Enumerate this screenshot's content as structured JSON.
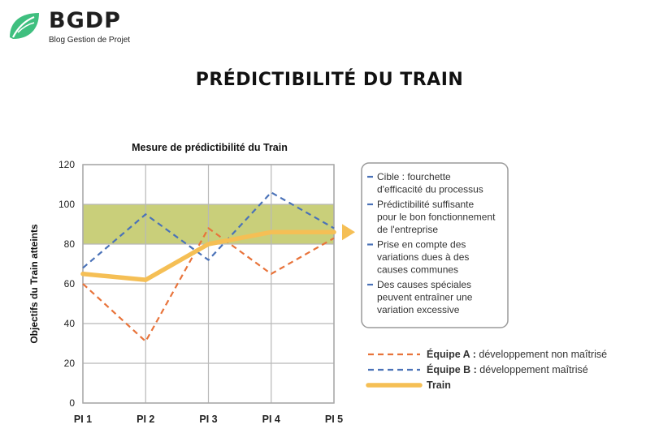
{
  "brand": {
    "name": "BGDP",
    "tagline": "Blog Gestion de Projet",
    "icon": "leaf-icon",
    "color": "#3fbf7f"
  },
  "page_title": "PRÉDICTIBILITÉ DU TRAIN",
  "chart_data": {
    "type": "line",
    "title": "Mesure de prédictibilité du Train",
    "xlabel": "",
    "ylabel": "Objectifs du Train atteints",
    "ylim": [
      0,
      120
    ],
    "yticks": [
      0,
      20,
      40,
      60,
      80,
      100,
      120
    ],
    "grid": true,
    "x": [
      "PI 1",
      "PI 2",
      "PI 3",
      "PI 4",
      "PI 5"
    ],
    "band": {
      "from": 80,
      "to": 100,
      "color": "#c9cf7a"
    },
    "series": [
      {
        "name": "Équipe A",
        "values": [
          60,
          31,
          88,
          65,
          83
        ],
        "color": "#e8733a",
        "style": "dashed"
      },
      {
        "name": "Équipe B",
        "values": [
          68,
          95,
          72,
          106,
          88
        ],
        "color": "#4a72b8",
        "style": "dashed"
      },
      {
        "name": "Train",
        "values": [
          65,
          62,
          80,
          86,
          86
        ],
        "color": "#f5bf55",
        "style": "solid"
      }
    ],
    "legend": {
      "placement": "bottom-right",
      "entries": [
        {
          "bold": "Équipe A :",
          "text": " développement non maîtrisé"
        },
        {
          "bold": "Équipe B :",
          "text": " développement maîtrisé"
        },
        {
          "bold": "Train",
          "text": ""
        }
      ]
    },
    "annotations": [
      {
        "lines": [
          "Cible : fourchette",
          "d'efficacité du processus"
        ]
      },
      {
        "lines": [
          "Prédictibilité suffisante",
          "pour le bon fonctionnement",
          "de l'entreprise"
        ]
      },
      {
        "lines": [
          "Prise en compte des",
          "variations dues à des",
          "causes communes"
        ]
      },
      {
        "lines": [
          "Des causes spéciales",
          "peuvent entraîner une",
          "variation excessive"
        ]
      }
    ]
  }
}
